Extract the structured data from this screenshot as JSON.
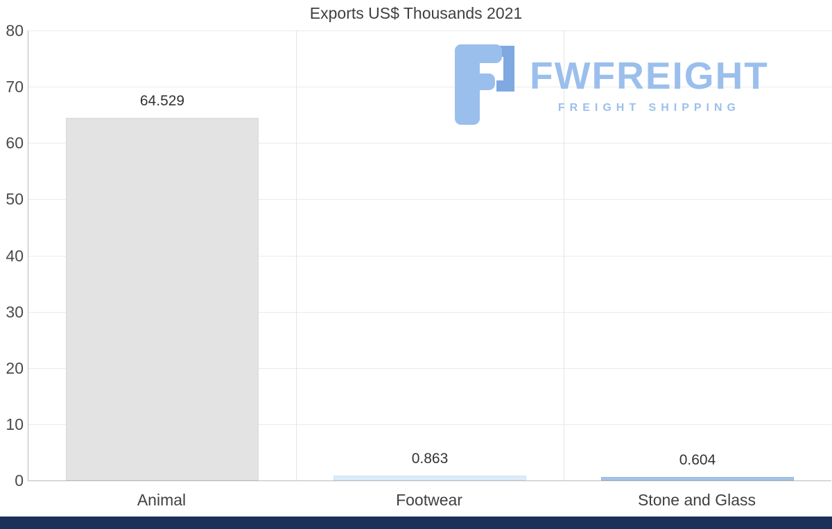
{
  "chart_data": {
    "type": "bar",
    "title": "Exports US$ Thousands 2021",
    "categories": [
      "Animal",
      "Footwear",
      "Stone and Glass"
    ],
    "values": [
      64.529,
      0.863,
      0.604
    ],
    "value_labels": [
      "64.529",
      "0.863",
      "0.604"
    ],
    "bar_colors": [
      "#e3e3e3",
      "#dcebf8",
      "#a7c4e6"
    ],
    "bar_border_colors": [
      "#dadada",
      "#cde2f4",
      "#93b6de"
    ],
    "ylim": [
      0,
      80
    ],
    "yticks": [
      0,
      10,
      20,
      30,
      40,
      50,
      60,
      70,
      80
    ],
    "xlabel": "",
    "ylabel": "",
    "grid": true,
    "legend": false
  },
  "logo": {
    "name": "FWFREIGHT",
    "tagline": "FREIGHT SHIPPING",
    "color": "#9bbfec",
    "glyph_primary": "#9bbfec",
    "glyph_accent": "#7fa9e0"
  },
  "footer": {
    "color": "#1b3159"
  }
}
